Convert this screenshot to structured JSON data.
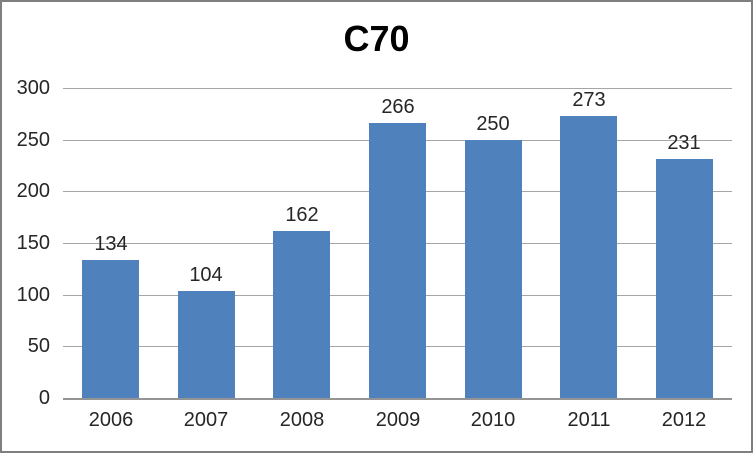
{
  "chart_data": {
    "type": "bar",
    "title": "C70",
    "categories": [
      "2006",
      "2007",
      "2008",
      "2009",
      "2010",
      "2011",
      "2012"
    ],
    "values": [
      134,
      104,
      162,
      266,
      250,
      273,
      231
    ],
    "xlabel": "",
    "ylabel": "",
    "ylim": [
      0,
      300
    ],
    "yticks": [
      0,
      50,
      100,
      150,
      200,
      250,
      300
    ],
    "grid": true,
    "legend": false,
    "colors": {
      "bar": "#4F81BD",
      "gridline": "#A6A6A6",
      "axis_line": "#949494",
      "label_text": "#262626",
      "title_text": "#000000",
      "frame_border": "#7F7F7F",
      "background": "#FFFFFF"
    }
  }
}
